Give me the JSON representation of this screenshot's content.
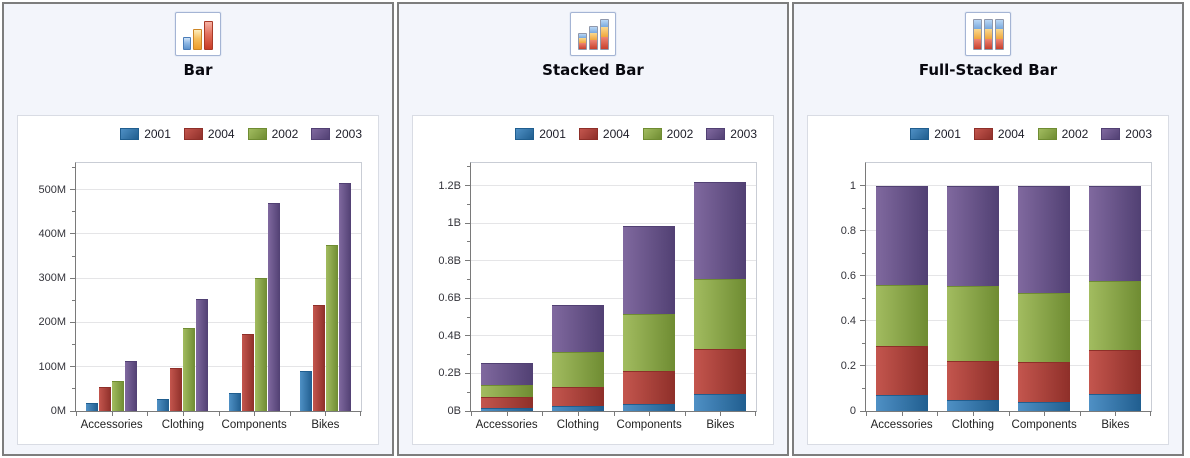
{
  "panels": [
    {
      "icon": "bar-chart-icon"
    },
    {
      "icon": "stacked-bar-chart-icon"
    },
    {
      "icon": "full-stacked-bar-chart-icon"
    }
  ],
  "chart_data": [
    {
      "type": "bar",
      "title": "Bar",
      "categories": [
        "Accessories",
        "Clothing",
        "Components",
        "Bikes"
      ],
      "series": [
        {
          "name": "2001",
          "color": "#3377ae",
          "color_light": "#4f90c5",
          "color_dark": "#205e8f",
          "values": [
            18,
            28,
            40,
            90
          ]
        },
        {
          "name": "2004",
          "color": "#ae413a",
          "color_light": "#c4564e",
          "color_dark": "#8e2f29",
          "values": [
            55,
            98,
            175,
            240
          ]
        },
        {
          "name": "2002",
          "color": "#8ba844",
          "color_light": "#a2bc60",
          "color_dark": "#6f8c32",
          "values": [
            68,
            187,
            300,
            375
          ]
        },
        {
          "name": "2003",
          "color": "#6a5492",
          "color_light": "#80699f",
          "color_dark": "#514073",
          "values": [
            112,
            252,
            470,
            515
          ]
        }
      ],
      "unit": "M",
      "ylim": [
        0,
        560
      ],
      "ytick_step": 100,
      "ytick_labels": [
        "0M",
        "100M",
        "200M",
        "300M",
        "400M",
        "500M"
      ],
      "legend_position": "top-right",
      "grid": true
    },
    {
      "type": "stacked-bar",
      "title": "Stacked Bar",
      "categories": [
        "Accessories",
        "Clothing",
        "Components",
        "Bikes"
      ],
      "series": [
        {
          "name": "2001",
          "color": "#3377ae",
          "color_light": "#4f90c5",
          "color_dark": "#205e8f",
          "values": [
            0.018,
            0.028,
            0.04,
            0.09
          ]
        },
        {
          "name": "2004",
          "color": "#ae413a",
          "color_light": "#c4564e",
          "color_dark": "#8e2f29",
          "values": [
            0.055,
            0.098,
            0.175,
            0.24
          ]
        },
        {
          "name": "2002",
          "color": "#8ba844",
          "color_light": "#a2bc60",
          "color_dark": "#6f8c32",
          "values": [
            0.068,
            0.187,
            0.3,
            0.375
          ]
        },
        {
          "name": "2003",
          "color": "#6a5492",
          "color_light": "#80699f",
          "color_dark": "#514073",
          "values": [
            0.112,
            0.252,
            0.47,
            0.515
          ]
        }
      ],
      "unit": "B",
      "ylim": [
        0,
        1.32
      ],
      "ytick_step": 0.2,
      "ytick_labels": [
        "0B",
        "0.2B",
        "0.4B",
        "0.6B",
        "0.8B",
        "1B",
        "1.2B"
      ],
      "legend_position": "top-right",
      "grid": true
    },
    {
      "type": "full-stacked-bar",
      "title": "Full-Stacked Bar",
      "categories": [
        "Accessories",
        "Clothing",
        "Components",
        "Bikes"
      ],
      "normalized": true,
      "series": [
        {
          "name": "2001",
          "color": "#3377ae",
          "color_light": "#4f90c5",
          "color_dark": "#205e8f",
          "values": [
            18,
            28,
            40,
            90
          ]
        },
        {
          "name": "2004",
          "color": "#ae413a",
          "color_light": "#c4564e",
          "color_dark": "#8e2f29",
          "values": [
            55,
            98,
            175,
            240
          ]
        },
        {
          "name": "2002",
          "color": "#8ba844",
          "color_light": "#a2bc60",
          "color_dark": "#6f8c32",
          "values": [
            68,
            187,
            300,
            375
          ]
        },
        {
          "name": "2003",
          "color": "#6a5492",
          "color_light": "#80699f",
          "color_dark": "#514073",
          "values": [
            112,
            252,
            470,
            515
          ]
        }
      ],
      "unit": "fraction",
      "ylim": [
        0,
        1.1
      ],
      "ytick_step": 0.2,
      "ytick_labels": [
        "0",
        "0.2",
        "0.4",
        "0.6",
        "0.8",
        "1"
      ],
      "legend_position": "top-right",
      "grid": true
    }
  ]
}
